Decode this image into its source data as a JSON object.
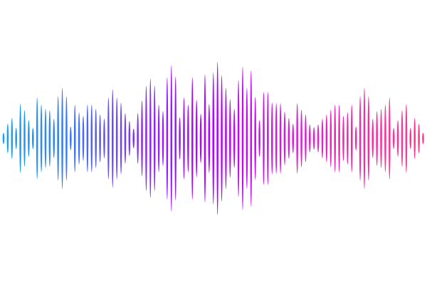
{
  "graphic": {
    "type": "sound-wave",
    "gradient_colors": [
      "#0fa8f2",
      "#3a78f2",
      "#8a2df0",
      "#b300ff",
      "#d41ce0",
      "#f02aa8",
      "#ff3a8c"
    ],
    "bar_levels": [
      8,
      21,
      29,
      15,
      49,
      40,
      26,
      15,
      58,
      48,
      42,
      40,
      28,
      60,
      72,
      60,
      17,
      48,
      37,
      32,
      48,
      48,
      42,
      34,
      28,
      58,
      70,
      58,
      51,
      36,
      25,
      14,
      36,
      54,
      75,
      85,
      75,
      48,
      39,
      87,
      104,
      88,
      30,
      58,
      48,
      87,
      55,
      35,
      91,
      49,
      94,
      109,
      90,
      72,
      56,
      42,
      83,
      102,
      72,
      97,
      59,
      26,
      66,
      66,
      51,
      50,
      50,
      38,
      29,
      21,
      50,
      41,
      34,
      20,
      16,
      20,
      28,
      34,
      41,
      48,
      48,
      32,
      37,
      48,
      17,
      60,
      72,
      60,
      28,
      39,
      42,
      48,
      58,
      15,
      26,
      40,
      49,
      15,
      29,
      21,
      8
    ],
    "bar_levels_max": 110
  }
}
